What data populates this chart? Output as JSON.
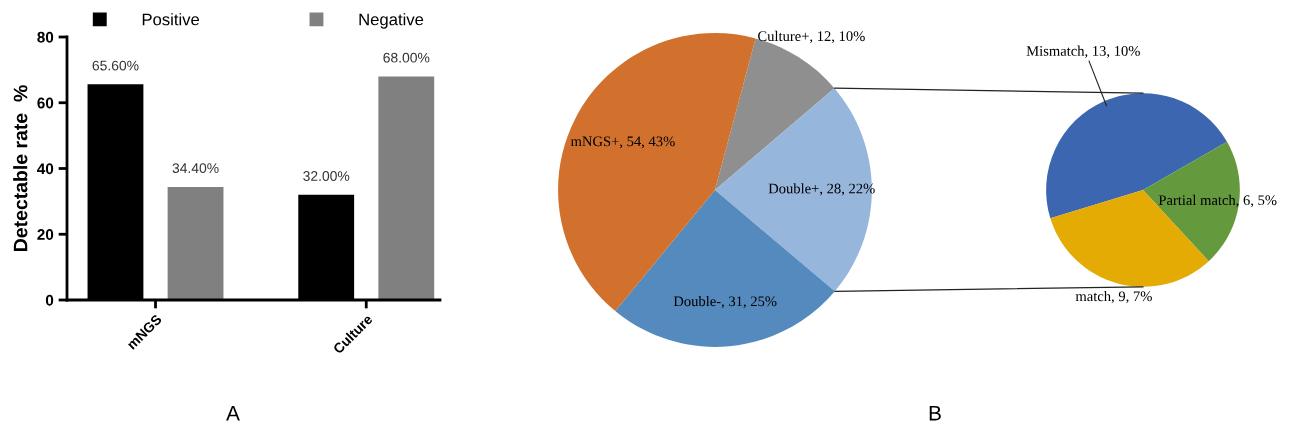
{
  "chart_data": [
    {
      "type": "bar",
      "ylabel": "Detectable rate  %",
      "categories": [
        "mNGS",
        "Culture"
      ],
      "series": [
        {
          "name": "Positive",
          "color": "#000000",
          "values": [
            65.6,
            32
          ],
          "value_labels": [
            "65.60%",
            "32.00%"
          ]
        },
        {
          "name": "Negative",
          "color": "#808080",
          "values": [
            34.4,
            68
          ],
          "value_labels": [
            "34.40%",
            "68.00%"
          ]
        }
      ],
      "ylim": [
        0,
        80
      ],
      "yticks": [
        0,
        20,
        40,
        60,
        80
      ],
      "legend": "top",
      "grid": false,
      "annotations": [
        "A"
      ]
    },
    {
      "type": "pie",
      "categories": [
        "Culture+",
        "Double+",
        "Double-",
        "mNGS+"
      ],
      "values": [
        12,
        28,
        31,
        54
      ],
      "value_labels": [
        "12, 10%",
        "28, 22%",
        "31, 25%",
        "54, 43%"
      ],
      "colors": [
        "#8f8f8f",
        "#97b6dc",
        "#548abe",
        "#d2702e"
      ],
      "annotations": [
        "B"
      ]
    },
    {
      "type": "pie",
      "categories": [
        "Mismatch",
        "Partial match",
        "match"
      ],
      "values": [
        13,
        6,
        9
      ],
      "value_labels": [
        "13, 10%",
        "6, 5%",
        "9, 7%"
      ],
      "colors": [
        "#3c66b0",
        "#64993d",
        "#e3ab04"
      ]
    }
  ]
}
